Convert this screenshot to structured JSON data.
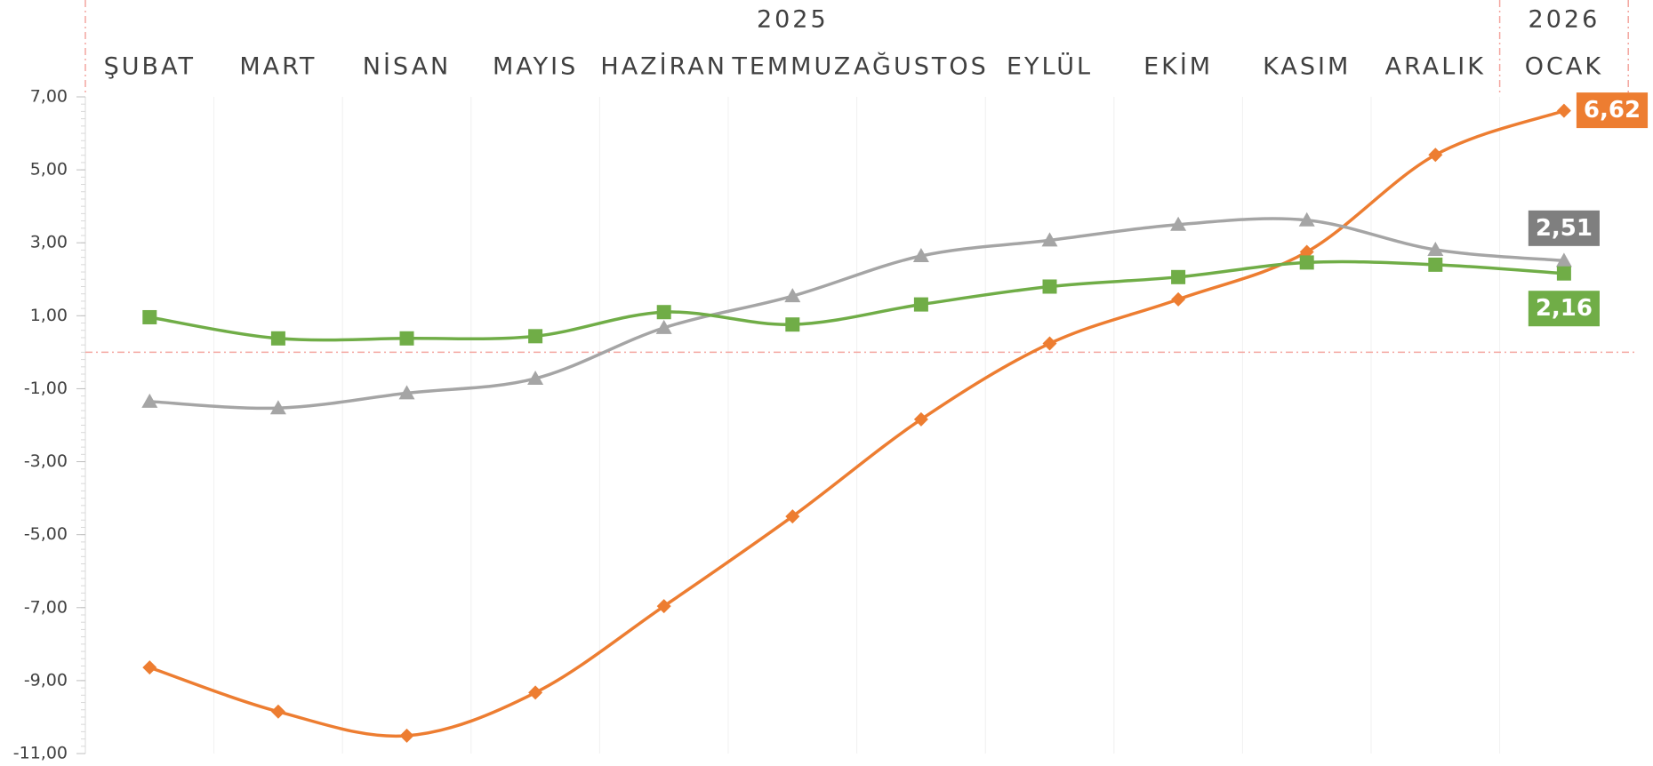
{
  "chart_data": {
    "type": "line",
    "periods": [
      {
        "label": "2025",
        "count": 11
      },
      {
        "label": "2026",
        "count": 1
      }
    ],
    "categories": [
      "ŞUBAT",
      "MART",
      "NİSAN",
      "MAYIS",
      "HAZİRAN",
      "TEMMUZ",
      "AĞUSTOS",
      "EYLÜL",
      "EKİM",
      "KASIM",
      "ARALIK",
      "OCAK"
    ],
    "series": [
      {
        "color": "#ed7d31",
        "marker": "diamond",
        "values": [
          -8.64,
          -9.85,
          -10.51,
          -9.33,
          -6.96,
          -4.5,
          -1.84,
          0.24,
          1.45,
          2.75,
          5.41,
          6.62
        ],
        "value_labels": [
          null,
          null,
          null,
          null,
          null,
          null,
          null,
          null,
          null,
          null,
          null,
          "6,62"
        ]
      },
      {
        "color": "#a5a5a5",
        "marker": "triangle",
        "values": [
          -1.35,
          -1.53,
          -1.12,
          -0.72,
          0.67,
          1.54,
          2.64,
          3.07,
          3.5,
          3.62,
          2.81,
          2.51
        ],
        "value_labels": [
          null,
          null,
          null,
          null,
          null,
          null,
          null,
          null,
          null,
          null,
          null,
          "2,51"
        ]
      },
      {
        "color": "#70ad47",
        "marker": "square",
        "values": [
          0.96,
          0.38,
          0.38,
          0.44,
          1.1,
          0.76,
          1.31,
          1.8,
          2.06,
          2.46,
          2.4,
          2.16
        ],
        "value_labels": [
          null,
          null,
          null,
          null,
          null,
          null,
          null,
          null,
          null,
          null,
          null,
          "2,16"
        ]
      }
    ],
    "ylim": [
      -11,
      7
    ],
    "yticks": [
      {
        "value": -11,
        "label": "-11,00"
      },
      {
        "value": -9,
        "label": "-9,00"
      },
      {
        "value": -7,
        "label": "-7,00"
      },
      {
        "value": -5,
        "label": "-5,00"
      },
      {
        "value": -3,
        "label": "-3,00"
      },
      {
        "value": -1,
        "label": "-1,00"
      },
      {
        "value": 1,
        "label": "1,00"
      },
      {
        "value": 3,
        "label": "3,00"
      },
      {
        "value": 5,
        "label": "5,00"
      },
      {
        "value": 7,
        "label": "7,00"
      }
    ],
    "reference_line": 0,
    "reference_color": "#f4a6a0",
    "grid": true
  }
}
